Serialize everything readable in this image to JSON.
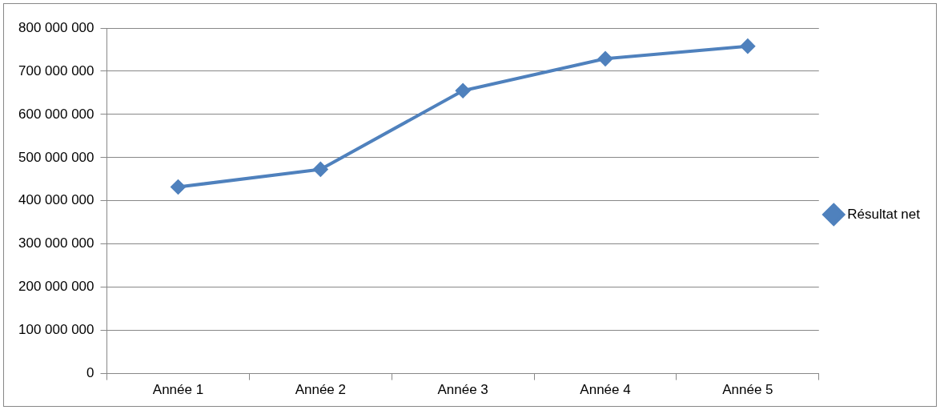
{
  "chart_data": {
    "type": "line",
    "categories": [
      "Année 1",
      "Année 2",
      "Année 3",
      "Année 4",
      "Année 5"
    ],
    "series": [
      {
        "name": "Résultat net",
        "color": "#4f81bd",
        "values": [
          432000000,
          473000000,
          655000000,
          729000000,
          758000000
        ]
      }
    ],
    "ylim": [
      0,
      800000000
    ],
    "yticks": [
      {
        "value": 0,
        "label": "0"
      },
      {
        "value": 100000000,
        "label": "100 000 000"
      },
      {
        "value": 200000000,
        "label": "200 000 000"
      },
      {
        "value": 300000000,
        "label": "300 000 000"
      },
      {
        "value": 400000000,
        "label": "400 000 000"
      },
      {
        "value": 500000000,
        "label": "500 000 000"
      },
      {
        "value": 600000000,
        "label": "600 000 000"
      },
      {
        "value": 700000000,
        "label": "700 000 000"
      },
      {
        "value": 800000000,
        "label": "800 000 000"
      }
    ],
    "grid": "y",
    "legend": "right",
    "marker": "diamond",
    "line_style": "solid"
  }
}
